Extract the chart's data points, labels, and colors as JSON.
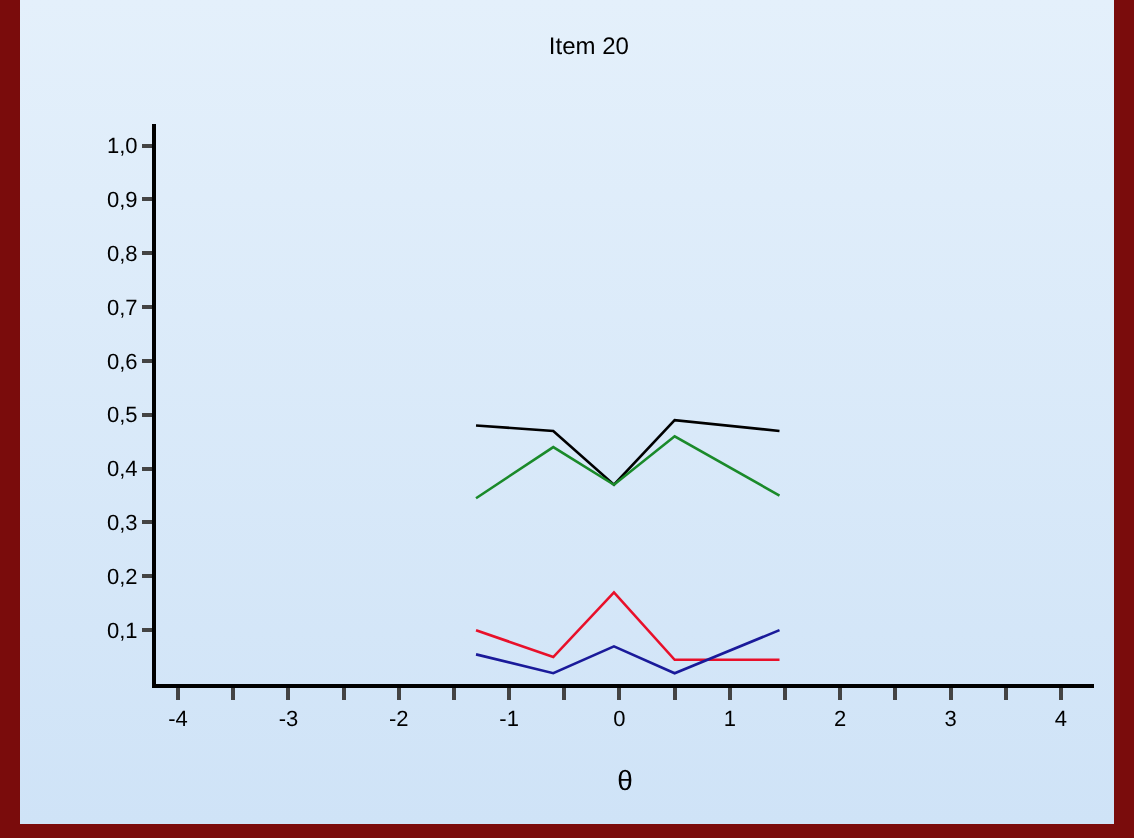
{
  "chart_data": {
    "type": "line",
    "title": "Item 20",
    "xlabel": "θ",
    "xlim": [
      -4.2,
      4.3
    ],
    "xticks": [
      -4,
      {
        "value": -3.5,
        "label": null
      },
      -3,
      {
        "value": -2.5,
        "label": null
      },
      -2,
      {
        "value": -1.5,
        "label": null
      },
      -1,
      {
        "value": -0.5,
        "label": null
      },
      0,
      {
        "value": 0.5,
        "label": null
      },
      1,
      {
        "value": 1.5,
        "label": null
      },
      2,
      {
        "value": 2.5,
        "label": null
      },
      3,
      {
        "value": 3.5,
        "label": null
      },
      4
    ],
    "ylim": [
      0,
      1.04
    ],
    "yticks": [
      {
        "value": 0.1,
        "label": "0,1"
      },
      {
        "value": 0.2,
        "label": "0,2"
      },
      {
        "value": 0.3,
        "label": "0,3"
      },
      {
        "value": 0.4,
        "label": "0,4"
      },
      {
        "value": 0.5,
        "label": "0,5"
      },
      {
        "value": 0.6,
        "label": "0,6"
      },
      {
        "value": 0.7,
        "label": "0,7"
      },
      {
        "value": 0.8,
        "label": "0,8"
      },
      {
        "value": 0.9,
        "label": "0,9"
      },
      {
        "value": 1.0,
        "label": "1,0"
      }
    ],
    "x": [
      -1.3,
      -0.6,
      -0.05,
      0.5,
      1.45
    ],
    "series": [
      {
        "color": "#000000",
        "values": [
          0.48,
          0.47,
          0.37,
          0.49,
          0.47
        ]
      },
      {
        "color": "#1a8a2a",
        "values": [
          0.345,
          0.44,
          0.37,
          0.46,
          0.35
        ]
      },
      {
        "color": "#e8102a",
        "values": [
          0.1,
          0.05,
          0.17,
          0.045,
          0.045
        ]
      },
      {
        "color": "#1a1a9a",
        "values": [
          0.055,
          0.02,
          0.07,
          0.02,
          0.1
        ]
      }
    ],
    "grid": false,
    "marker": "none",
    "line_style": "solid"
  }
}
